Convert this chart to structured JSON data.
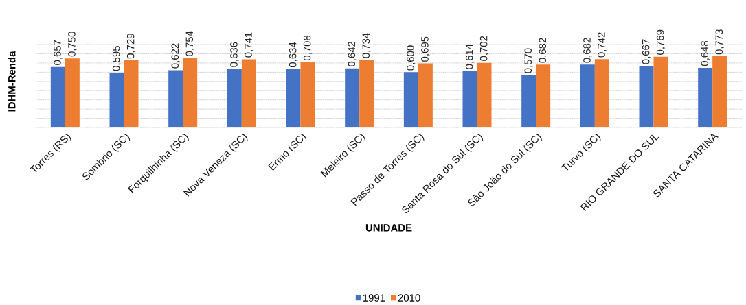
{
  "chart_data": {
    "type": "bar",
    "xlabel": "UNIDADE",
    "ylabel": "IDHM-Renda",
    "categories": [
      "Torres (RS)",
      "Sombrio (SC)",
      "Forquilhinha (SC)",
      "Nova Veneza (SC)",
      "Ermo (SC)",
      "Meleiro (SC)",
      "Passo de Torres (SC)",
      "Santa Rosa do Sul (SC)",
      "São João do Sul (SC)",
      "Turvo (SC)",
      "RIO GRANDE DO SUL",
      "SANTA CATARINA"
    ],
    "series": [
      {
        "name": "1991",
        "color": "#4472c4",
        "values": [
          0.657,
          0.595,
          0.622,
          0.636,
          0.634,
          0.642,
          0.6,
          0.614,
          0.57,
          0.682,
          0.667,
          0.648
        ],
        "value_labels": [
          "0,657",
          "0,595",
          "0,622",
          "0,636",
          "0,634",
          "0,642",
          "0,600",
          "0,614",
          "0,570",
          "0,682",
          "0,667",
          "0,648"
        ]
      },
      {
        "name": "2010",
        "color": "#ed7d31",
        "values": [
          0.75,
          0.729,
          0.754,
          0.741,
          0.708,
          0.734,
          0.695,
          0.702,
          0.682,
          0.742,
          0.769,
          0.773
        ],
        "value_labels": [
          "0,750",
          "0,729",
          "0,754",
          "0,741",
          "0,708",
          "0,734",
          "0,695",
          "0,702",
          "0,682",
          "0,742",
          "0,769",
          "0,773"
        ]
      }
    ],
    "grid": "y",
    "legend": "bottom",
    "tick_labels": "x"
  }
}
